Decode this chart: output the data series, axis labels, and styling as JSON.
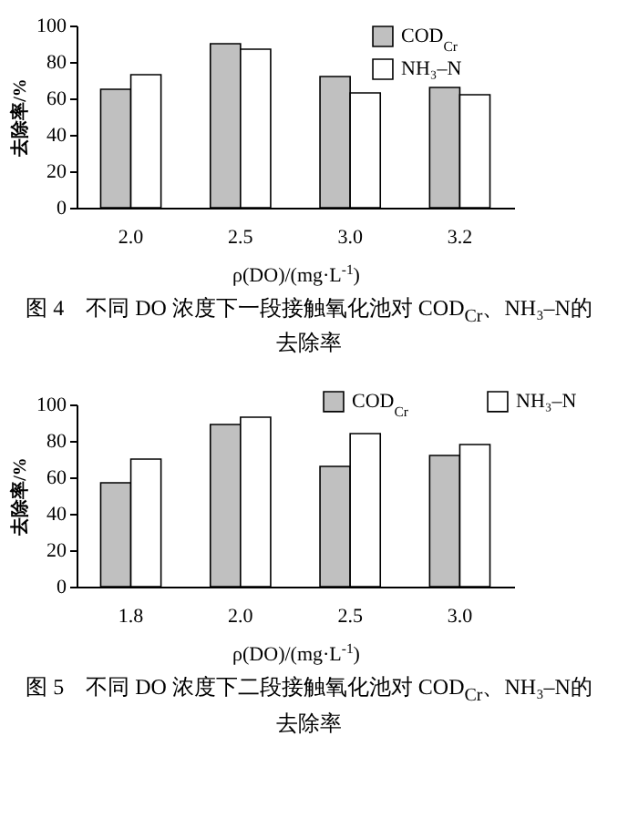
{
  "chart_data": [
    {
      "type": "bar",
      "title": "图 4　不同 DO 浓度下一段接触氧化池对 COD$_{Cr}$、NH₃–N的去除率",
      "xlabel": "ρ(DO)/(mg·L$^{-1}$)",
      "ylabel": "去除率/%",
      "categories": [
        "2.0",
        "2.5",
        "3.0",
        "3.2"
      ],
      "series": [
        {
          "name": "COD$_{Cr}$",
          "color": "#c0c0c0",
          "values": [
            65,
            90,
            72,
            66
          ]
        },
        {
          "name": "NH₃–N",
          "color": "#ffffff",
          "values": [
            73,
            87,
            63,
            62
          ]
        }
      ],
      "ylim": [
        0,
        100
      ],
      "yticks": [
        0,
        20,
        40,
        60,
        80,
        100
      ],
      "grid": false,
      "legend": "top right"
    },
    {
      "type": "bar",
      "title": "图 5　不同 DO 浓度下二段接触氧化池对 COD$_{Cr}$、NH₃–N的去除率",
      "xlabel": "ρ(DO)/(mg·L$^{-1}$)",
      "ylabel": "去除率/%",
      "categories": [
        "1.8",
        "2.0",
        "2.5",
        "3.0"
      ],
      "series": [
        {
          "name": "COD$_{Cr}$",
          "color": "#c0c0c0",
          "values": [
            57,
            89,
            66,
            72
          ]
        },
        {
          "name": "NH₃–N",
          "color": "#ffffff",
          "values": [
            70,
            93,
            84,
            78
          ]
        }
      ],
      "ylim": [
        0,
        100
      ],
      "yticks": [
        0,
        20,
        40,
        60,
        80,
        100
      ],
      "grid": false,
      "legend": "top"
    }
  ]
}
